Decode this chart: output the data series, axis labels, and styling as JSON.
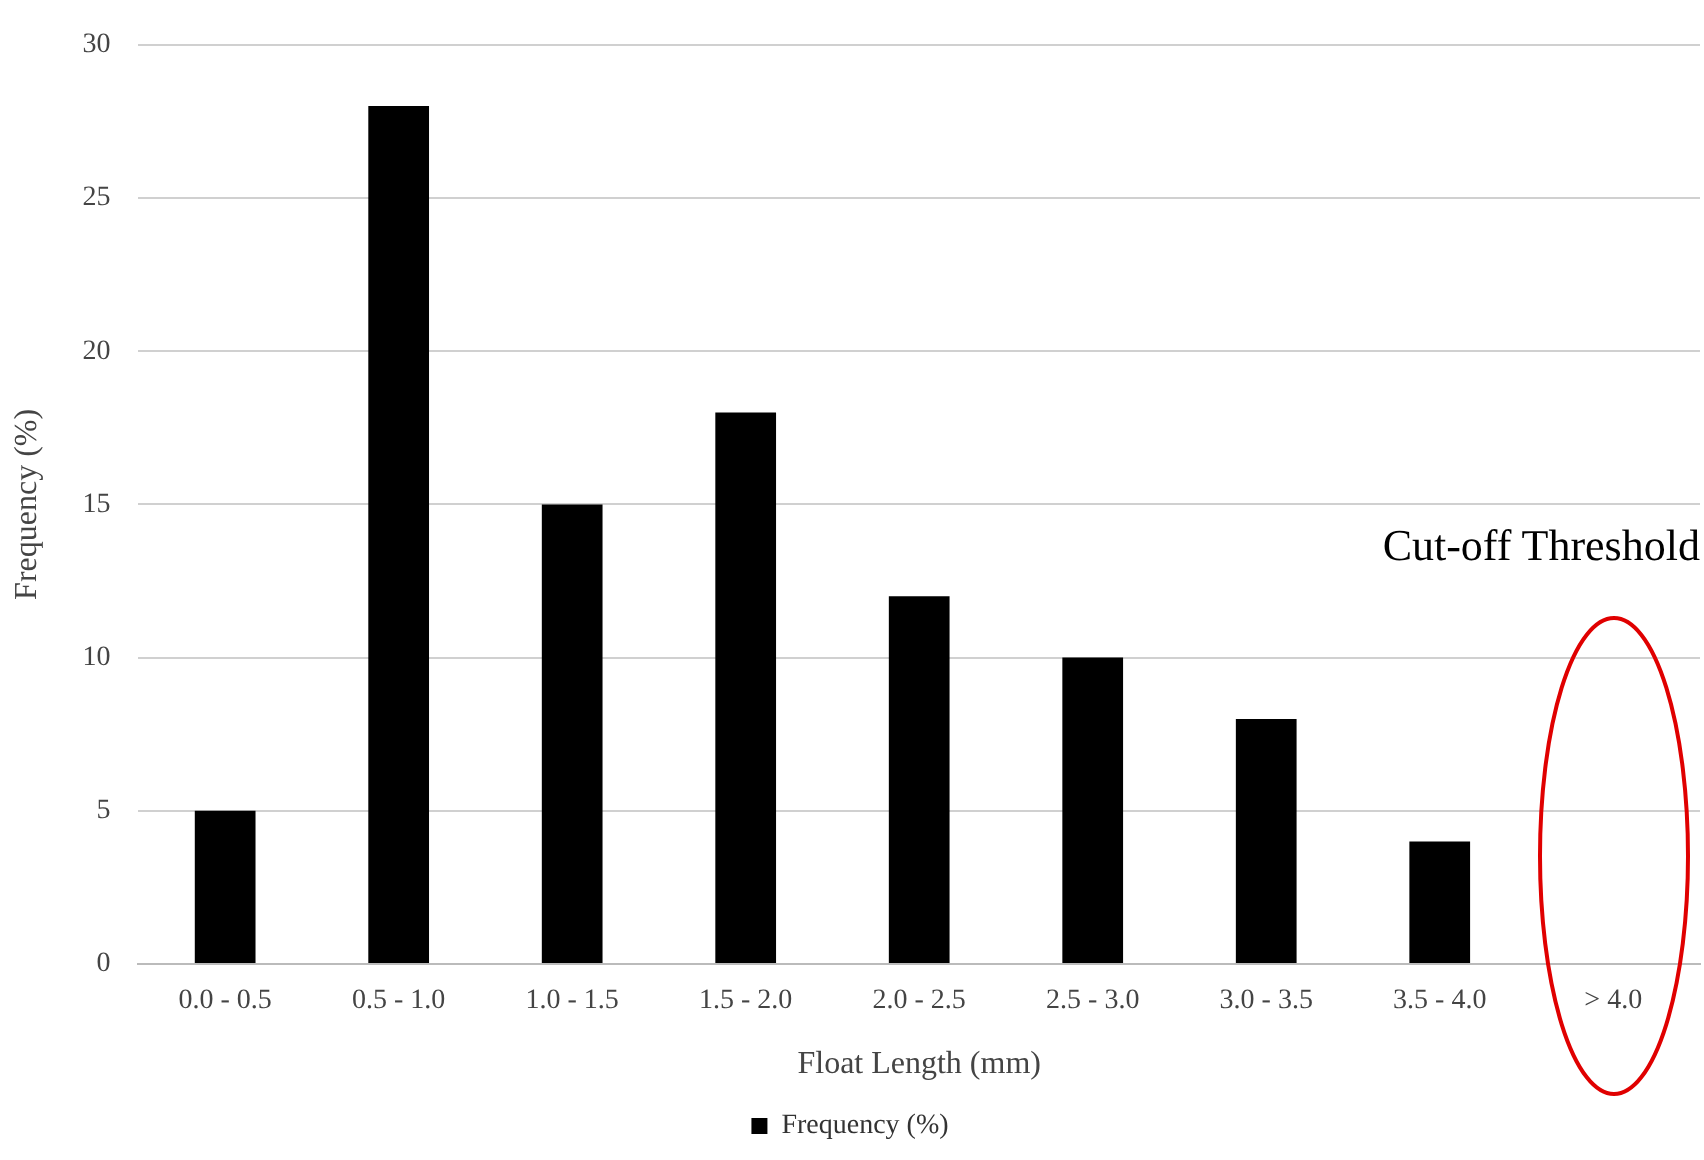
{
  "chart_data": {
    "type": "bar",
    "xlabel": "Float Length (mm)",
    "ylabel": "Frequency (%)",
    "categories": [
      "0.0 - 0.5",
      "0.5 - 1.0",
      "1.0 - 1.5",
      "1.5 - 2.0",
      "2.0 - 2.5",
      "2.5 - 3.0",
      "3.0 - 3.5",
      "3.5 - 4.0",
      "> 4.0"
    ],
    "series": [
      {
        "name": "Frequency (%)",
        "color": "#000000",
        "values": [
          5,
          28,
          15,
          18,
          12,
          10,
          8,
          4,
          0
        ]
      }
    ],
    "ylim": [
      0,
      30
    ],
    "yticks": [
      0,
      5,
      10,
      15,
      20,
      25,
      30
    ],
    "grid": "y",
    "legend": "bottom",
    "annotations": [
      "Cut-off Threshold"
    ]
  }
}
